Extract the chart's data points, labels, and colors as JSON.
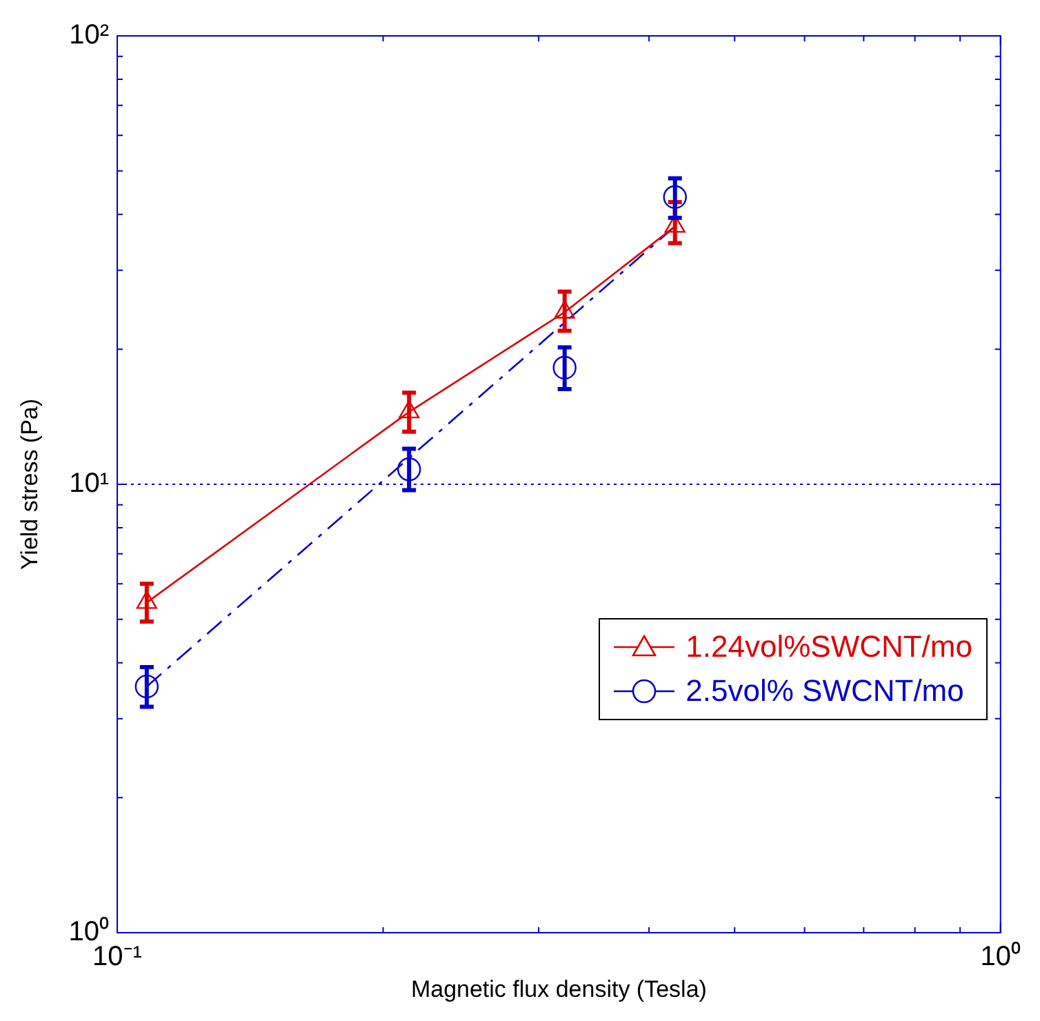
{
  "chart_data": {
    "type": "line",
    "xlabel": "Magnetic flux density (Tesla)",
    "ylabel": "Yield stress (Pa)",
    "log": "xy",
    "ref_lines": [
      {
        "axis": "y",
        "value": 10,
        "color": "#0000cc",
        "line_style": "dotted"
      }
    ],
    "legend": "right",
    "xlim": [
      0.1,
      1
    ],
    "ylim": [
      1,
      100
    ],
    "xticks": [
      {
        "value": 0.1,
        "label": "10⁻¹"
      },
      {
        "value": 0.2,
        "label": null
      },
      {
        "value": 0.3,
        "label": null
      },
      {
        "value": 0.4,
        "label": null
      },
      {
        "value": 0.5,
        "label": null
      },
      {
        "value": 0.6,
        "label": null
      },
      {
        "value": 0.7,
        "label": null
      },
      {
        "value": 0.8,
        "label": null
      },
      {
        "value": 0.9,
        "label": null
      },
      {
        "value": 1,
        "label": "10⁰"
      }
    ],
    "yticks": [
      {
        "value": 1,
        "label": "10⁰"
      },
      {
        "value": 2,
        "label": null
      },
      {
        "value": 3,
        "label": null
      },
      {
        "value": 4,
        "label": null
      },
      {
        "value": 5,
        "label": null
      },
      {
        "value": 6,
        "label": null
      },
      {
        "value": 7,
        "label": null
      },
      {
        "value": 8,
        "label": null
      },
      {
        "value": 9,
        "label": null
      },
      {
        "value": 10,
        "label": "10¹"
      },
      {
        "value": 20,
        "label": null
      },
      {
        "value": 30,
        "label": null
      },
      {
        "value": 40,
        "label": null
      },
      {
        "value": 50,
        "label": null
      },
      {
        "value": 60,
        "label": null
      },
      {
        "value": 70,
        "label": null
      },
      {
        "value": 80,
        "label": null
      },
      {
        "value": 90,
        "label": null
      },
      {
        "value": 100,
        "label": "10²"
      }
    ],
    "series": [
      {
        "name": "1.24vol%SWCNT/mo",
        "color": "#dd0000",
        "marker": "triangle",
        "line_style": "solid",
        "x": [
          0.108,
          0.214,
          0.321,
          0.428
        ],
        "values": [
          5.45,
          14.5,
          24.2,
          37.6
        ],
        "errors": [
          [
            4.94,
            6.0
          ],
          [
            13.1,
            16.0
          ],
          [
            22.0,
            26.9
          ],
          [
            34.5,
            42.6
          ]
        ]
      },
      {
        "name": "2.5vol% SWCNT/mo",
        "type": "scatter",
        "color": "#0000cc",
        "marker": "circle",
        "x": [
          0.108,
          0.214,
          0.321,
          0.428
        ],
        "values": [
          3.54,
          10.8,
          18.2,
          43.7
        ],
        "errors": [
          [
            3.19,
            3.91
          ],
          [
            9.7,
            12.0
          ],
          [
            16.3,
            20.2
          ],
          [
            39.3,
            48.1
          ]
        ]
      },
      {
        "type": "line",
        "color": "#0000cc",
        "marker": "none",
        "line_style": "dashed",
        "x": [
          0.108,
          0.428
        ],
        "values": [
          3.54,
          37.6
        ]
      }
    ]
  }
}
